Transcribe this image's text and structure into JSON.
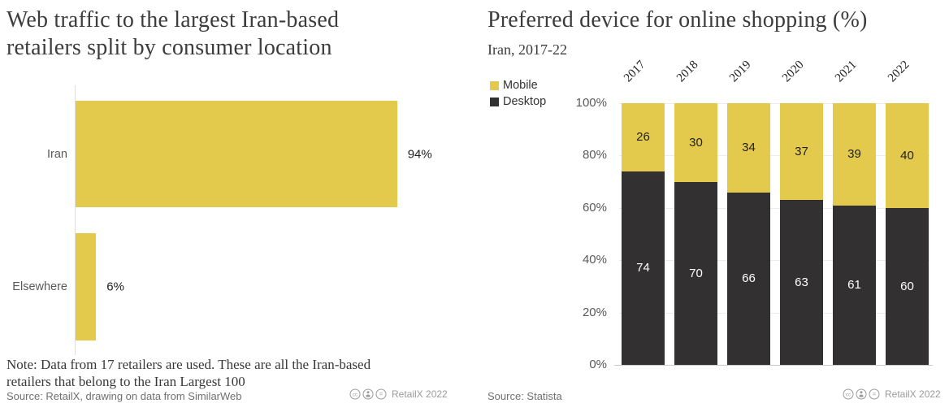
{
  "colors": {
    "yellow": "#E3CA4D",
    "dark": "#323031",
    "grid": "#ececec"
  },
  "left": {
    "title": [
      "Web traffic to the largest Iran-based",
      "retailers split by consumer location"
    ],
    "note": [
      "Note: Data from 17 retailers are used. These are all the Iran-based",
      "retailers that belong to the Iran Largest 100"
    ],
    "source": "Source: RetailX, drawing on data from SimilarWeb",
    "attribution": "RetailX 2022"
  },
  "right": {
    "title": "Preferred device for online shopping (%)",
    "subtitle": "Iran, 2017-22",
    "legend": [
      {
        "label": "Mobile",
        "color": "#E3CA4D"
      },
      {
        "label": "Desktop",
        "color": "#323031"
      }
    ],
    "source": "Source: Statista",
    "attribution": "RetailX 2022"
  },
  "chart_data": [
    {
      "type": "bar",
      "orientation": "horizontal",
      "title": "Web traffic to the largest Iran-based retailers split by consumer location",
      "categories": [
        "Iran",
        "Elsewhere"
      ],
      "values": [
        94,
        6
      ],
      "value_labels": [
        "94%",
        "6%"
      ],
      "xlim": [
        0,
        100
      ],
      "bar_color": "#E3CA4D",
      "grid": false
    },
    {
      "type": "bar",
      "stacked": true,
      "title": "Preferred device for online shopping (%)",
      "subtitle": "Iran, 2017-22",
      "categories": [
        "2017",
        "2018",
        "2019",
        "2020",
        "2021",
        "2022"
      ],
      "series": [
        {
          "name": "Mobile",
          "color": "#E3CA4D",
          "values": [
            26,
            30,
            34,
            37,
            39,
            40
          ]
        },
        {
          "name": "Desktop",
          "color": "#323031",
          "values": [
            74,
            70,
            66,
            63,
            61,
            60
          ]
        }
      ],
      "ylim": [
        0,
        100
      ],
      "yticks": [
        "100%",
        "80%",
        "60%",
        "40%",
        "20%",
        "0%"
      ],
      "grid": true,
      "legend_position": "top-left"
    }
  ]
}
